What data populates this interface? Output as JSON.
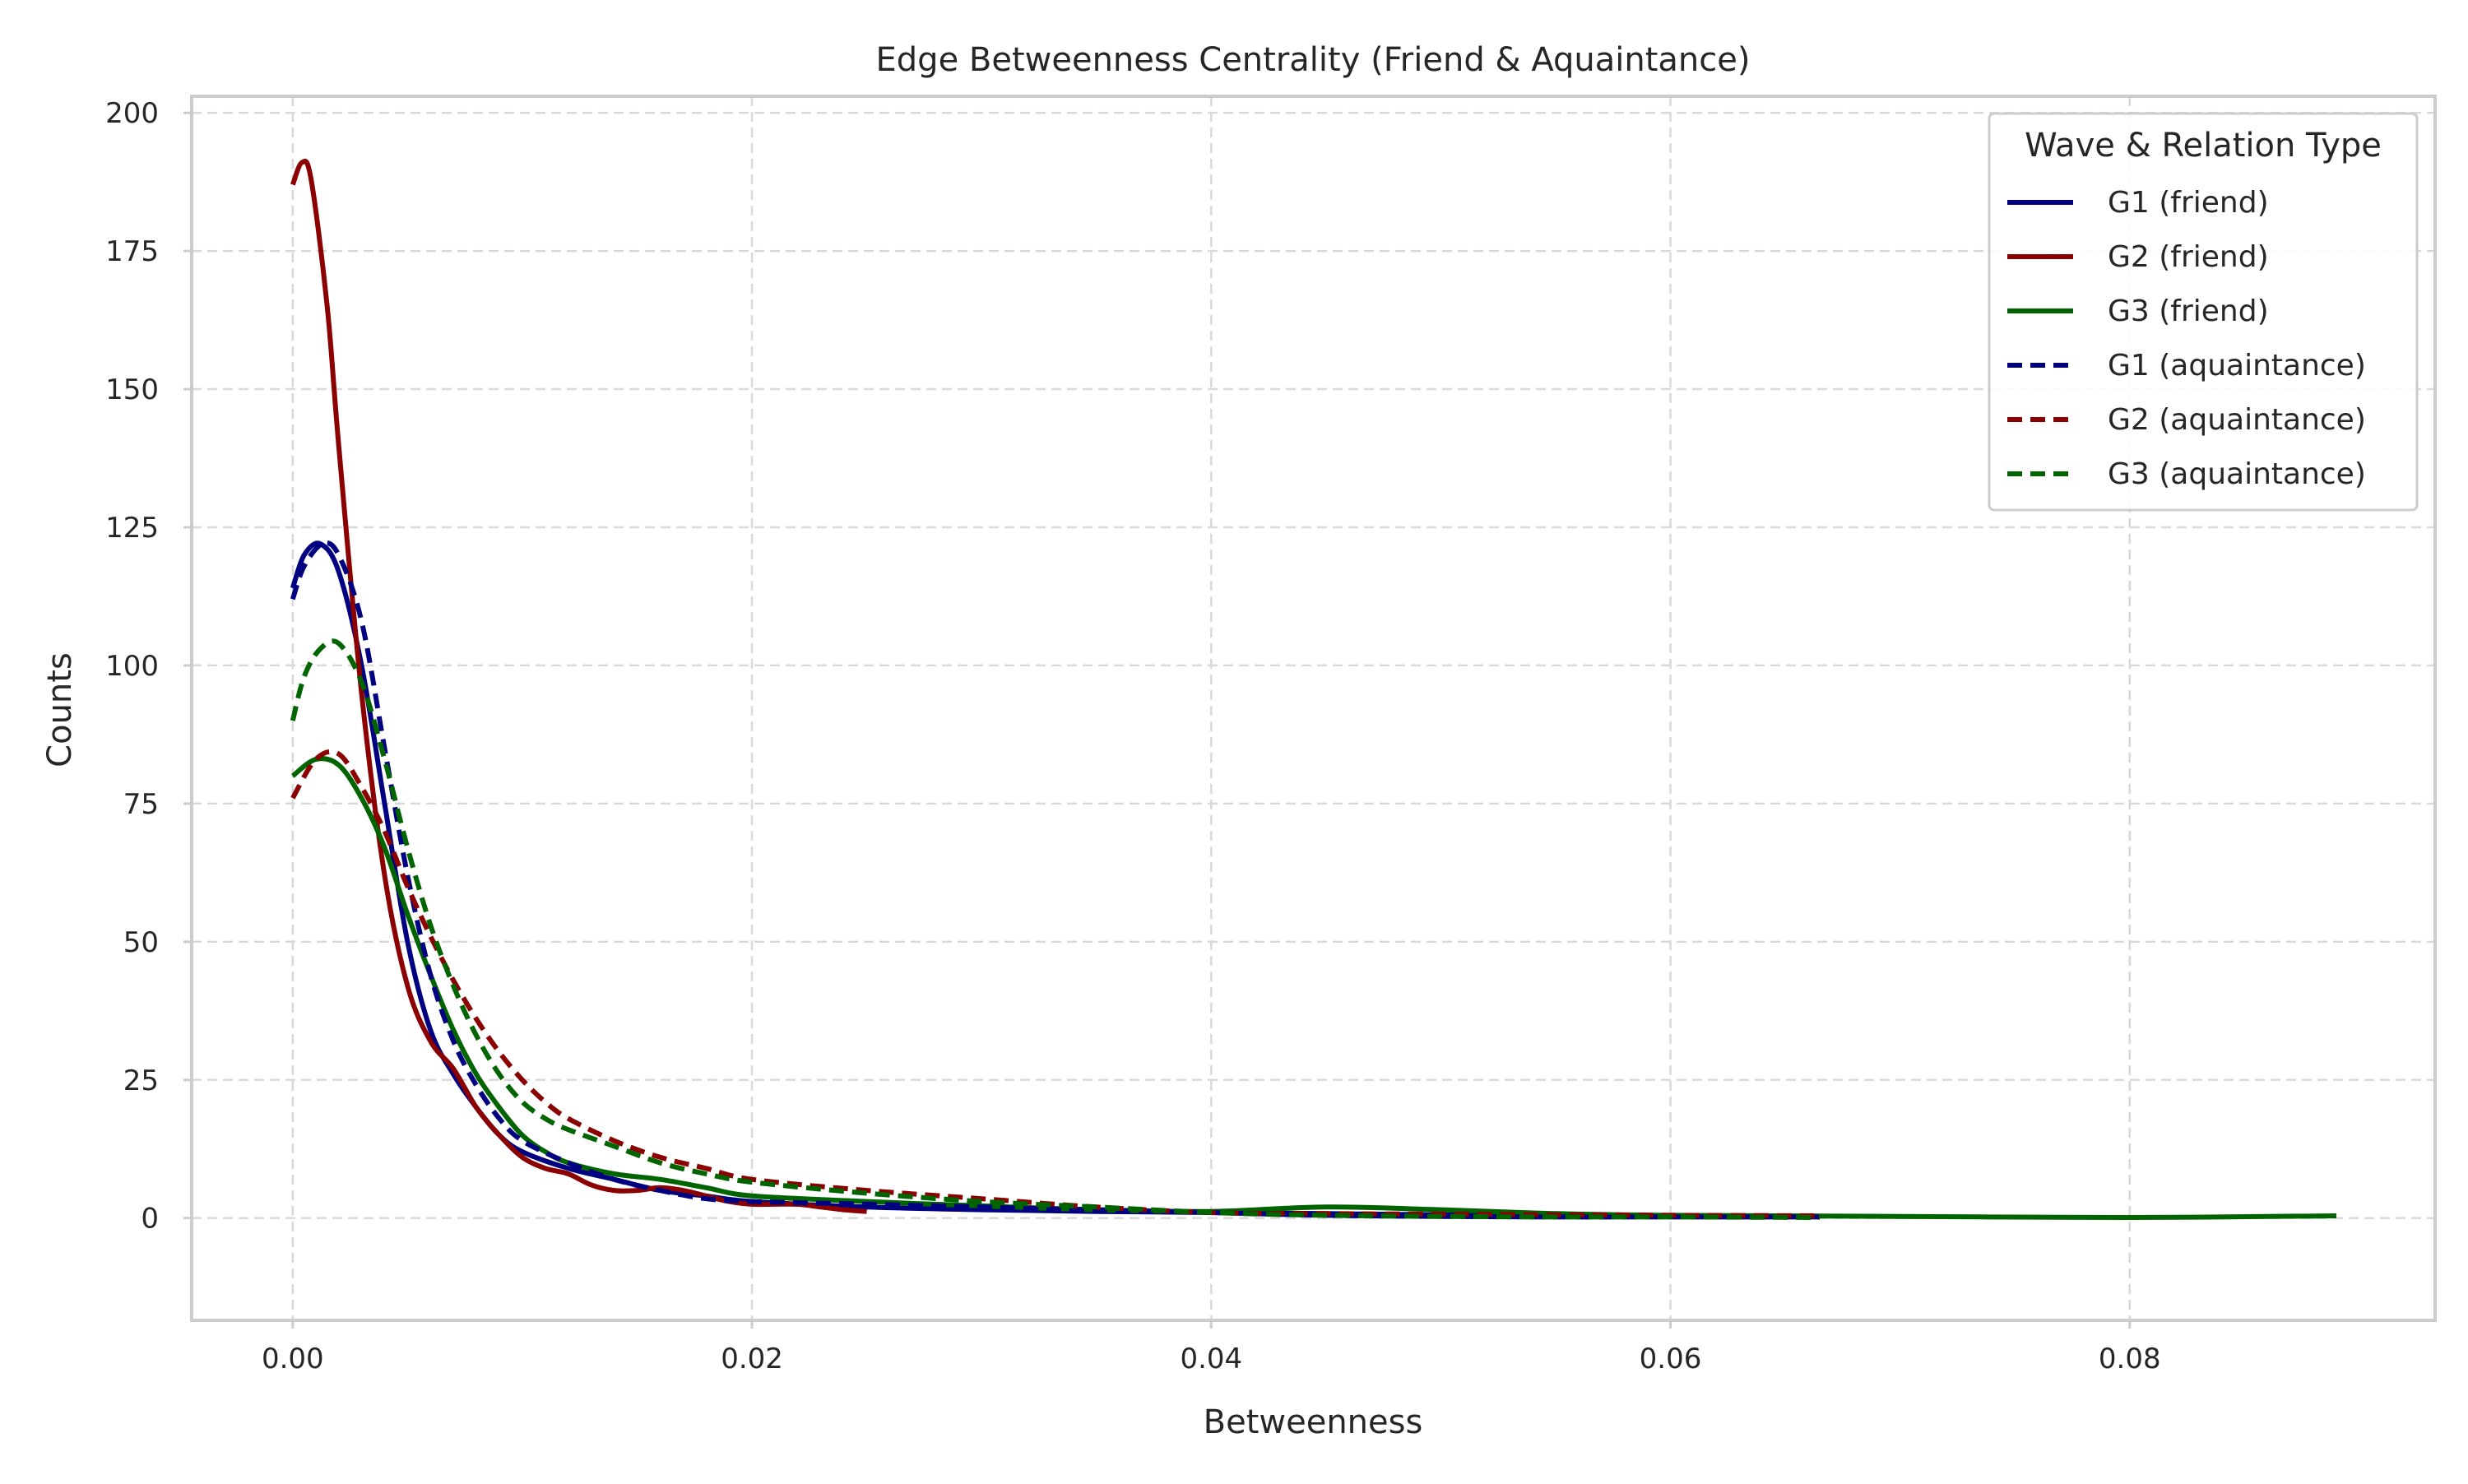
{
  "chart_data": {
    "type": "line",
    "title": "Edge Betweenness Centrality (Friend & Aquaintance)",
    "xlabel": "Betweenness",
    "ylabel": "Counts",
    "xlim": [
      -0.0044,
      0.0933
    ],
    "ylim": [
      -18.5,
      203
    ],
    "xticks": [
      0.0,
      0.02,
      0.04,
      0.06,
      0.08
    ],
    "xtick_labels": [
      "0.00",
      "0.02",
      "0.04",
      "0.06",
      "0.08"
    ],
    "yticks": [
      0,
      25,
      50,
      75,
      100,
      125,
      150,
      175,
      200
    ],
    "ytick_labels": [
      "0",
      "25",
      "50",
      "75",
      "100",
      "125",
      "150",
      "175",
      "200"
    ],
    "grid": true,
    "legend": {
      "title": "Wave & Relation Type",
      "placement": "top-right"
    },
    "series": [
      {
        "name": "G1 (friend)",
        "color": "#000080",
        "style": "solid",
        "points": [
          [
            0.0,
            114
          ],
          [
            0.0005,
            120
          ],
          [
            0.0012,
            122
          ],
          [
            0.002,
            117
          ],
          [
            0.003,
            100
          ],
          [
            0.004,
            75
          ],
          [
            0.005,
            50
          ],
          [
            0.006,
            34
          ],
          [
            0.007,
            26
          ],
          [
            0.008,
            20
          ],
          [
            0.009,
            15
          ],
          [
            0.01,
            12
          ],
          [
            0.012,
            9
          ],
          [
            0.014,
            7
          ],
          [
            0.016,
            5
          ],
          [
            0.018,
            4
          ],
          [
            0.02,
            3
          ],
          [
            0.025,
            2
          ],
          [
            0.03,
            1.5
          ],
          [
            0.035,
            1.2
          ],
          [
            0.04,
            1
          ],
          [
            0.045,
            0.8
          ],
          [
            0.05,
            0.6
          ],
          [
            0.055,
            0.5
          ],
          [
            0.06,
            0.3
          ],
          [
            0.0665,
            0.3
          ]
        ]
      },
      {
        "name": "G2 (friend)",
        "color": "#8b0000",
        "style": "solid",
        "points": [
          [
            0.0,
            187
          ],
          [
            0.0004,
            191
          ],
          [
            0.0008,
            188
          ],
          [
            0.0015,
            165
          ],
          [
            0.002,
            140
          ],
          [
            0.003,
            95
          ],
          [
            0.004,
            62
          ],
          [
            0.005,
            42
          ],
          [
            0.006,
            32
          ],
          [
            0.007,
            27
          ],
          [
            0.008,
            20
          ],
          [
            0.009,
            15
          ],
          [
            0.01,
            11
          ],
          [
            0.011,
            9
          ],
          [
            0.012,
            8
          ],
          [
            0.013,
            6
          ],
          [
            0.014,
            5
          ],
          [
            0.015,
            5
          ],
          [
            0.016,
            5.5
          ],
          [
            0.017,
            5
          ],
          [
            0.018,
            4
          ],
          [
            0.019,
            3
          ],
          [
            0.02,
            2.5
          ],
          [
            0.021,
            2.5
          ],
          [
            0.022,
            2.5
          ],
          [
            0.023,
            2
          ],
          [
            0.024,
            1.5
          ],
          [
            0.025,
            1.2
          ]
        ]
      },
      {
        "name": "G3 (friend)",
        "color": "#006400",
        "style": "solid",
        "points": [
          [
            0.0,
            80
          ],
          [
            0.001,
            83
          ],
          [
            0.002,
            82
          ],
          [
            0.003,
            76
          ],
          [
            0.004,
            67
          ],
          [
            0.005,
            55
          ],
          [
            0.006,
            44
          ],
          [
            0.007,
            34
          ],
          [
            0.008,
            26
          ],
          [
            0.009,
            20
          ],
          [
            0.01,
            15
          ],
          [
            0.011,
            12
          ],
          [
            0.012,
            10
          ],
          [
            0.014,
            8
          ],
          [
            0.016,
            7
          ],
          [
            0.018,
            5.5
          ],
          [
            0.02,
            4
          ],
          [
            0.025,
            3
          ],
          [
            0.03,
            2.2
          ],
          [
            0.035,
            1.5
          ],
          [
            0.04,
            1.2
          ],
          [
            0.045,
            2
          ],
          [
            0.05,
            1.5
          ],
          [
            0.055,
            0.8
          ],
          [
            0.06,
            0.5
          ],
          [
            0.07,
            0.3
          ],
          [
            0.08,
            0.1
          ],
          [
            0.089,
            0.4
          ]
        ]
      },
      {
        "name": "G1 (aquaintance)",
        "color": "#000080",
        "style": "dashed",
        "points": [
          [
            0.0,
            112
          ],
          [
            0.0005,
            118
          ],
          [
            0.0013,
            122
          ],
          [
            0.002,
            120
          ],
          [
            0.003,
            108
          ],
          [
            0.004,
            85
          ],
          [
            0.005,
            62
          ],
          [
            0.006,
            44
          ],
          [
            0.007,
            32
          ],
          [
            0.008,
            24
          ],
          [
            0.009,
            18
          ],
          [
            0.01,
            14
          ],
          [
            0.012,
            10
          ],
          [
            0.014,
            7
          ],
          [
            0.016,
            5
          ],
          [
            0.018,
            3.5
          ],
          [
            0.02,
            3
          ],
          [
            0.025,
            2.5
          ],
          [
            0.03,
            2
          ],
          [
            0.035,
            1.5
          ],
          [
            0.04,
            1
          ],
          [
            0.045,
            0.5
          ],
          [
            0.05,
            0.3
          ],
          [
            0.055,
            0.2
          ],
          [
            0.06,
            0.2
          ],
          [
            0.0665,
            0.2
          ]
        ]
      },
      {
        "name": "G2 (aquaintance)",
        "color": "#8b0000",
        "style": "dashed",
        "points": [
          [
            0.0,
            76
          ],
          [
            0.001,
            83
          ],
          [
            0.002,
            84
          ],
          [
            0.003,
            78
          ],
          [
            0.004,
            70
          ],
          [
            0.005,
            60
          ],
          [
            0.006,
            51
          ],
          [
            0.007,
            43
          ],
          [
            0.008,
            36
          ],
          [
            0.009,
            30
          ],
          [
            0.01,
            25
          ],
          [
            0.011,
            21
          ],
          [
            0.012,
            18
          ],
          [
            0.014,
            14
          ],
          [
            0.016,
            11
          ],
          [
            0.018,
            9
          ],
          [
            0.02,
            7
          ],
          [
            0.025,
            5
          ],
          [
            0.03,
            3.5
          ],
          [
            0.035,
            2
          ],
          [
            0.04,
            1
          ],
          [
            0.045,
            0.8
          ],
          [
            0.05,
            0.7
          ],
          [
            0.055,
            0.6
          ],
          [
            0.06,
            0.5
          ],
          [
            0.0665,
            0.4
          ]
        ]
      },
      {
        "name": "G3 (aquaintance)",
        "color": "#006400",
        "style": "dashed",
        "points": [
          [
            0.0,
            90
          ],
          [
            0.0005,
            98
          ],
          [
            0.0012,
            103
          ],
          [
            0.002,
            104
          ],
          [
            0.003,
            97
          ],
          [
            0.004,
            83
          ],
          [
            0.005,
            67
          ],
          [
            0.006,
            53
          ],
          [
            0.007,
            42
          ],
          [
            0.008,
            33
          ],
          [
            0.009,
            26
          ],
          [
            0.01,
            21
          ],
          [
            0.011,
            18
          ],
          [
            0.012,
            16
          ],
          [
            0.014,
            13
          ],
          [
            0.016,
            10
          ],
          [
            0.018,
            8
          ],
          [
            0.02,
            6.5
          ],
          [
            0.025,
            4.5
          ],
          [
            0.03,
            3
          ],
          [
            0.035,
            2
          ],
          [
            0.04,
            1
          ],
          [
            0.045,
            0.5
          ],
          [
            0.05,
            0.3
          ],
          [
            0.055,
            0.2
          ],
          [
            0.06,
            0.2
          ],
          [
            0.0665,
            0.1
          ]
        ]
      }
    ]
  }
}
